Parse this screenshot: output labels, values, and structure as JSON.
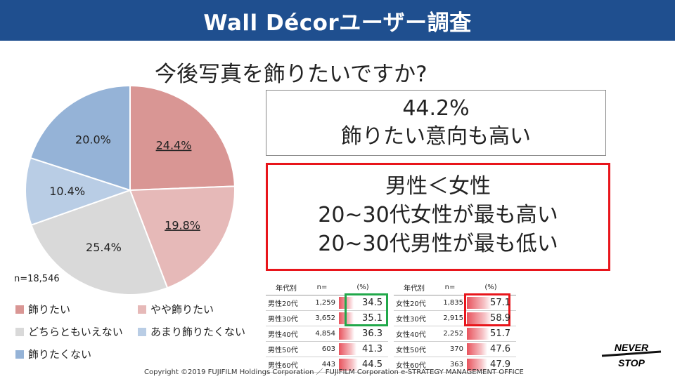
{
  "header": {
    "title": "Wall Décorユーザー調査"
  },
  "question": "今後写真を飾りたいですか?",
  "box1": {
    "lines": [
      "44.2%",
      "飾りたい意向も高い"
    ]
  },
  "box2": {
    "lines": [
      "男性＜女性",
      "20~30代女性が最も高い",
      "20~30代男性が最も低い"
    ]
  },
  "chart_data": {
    "type": "pie",
    "n_label": "n=18,546",
    "slices": [
      {
        "label": "飾りたい",
        "value": 24.4,
        "display": "24.4%",
        "color": "#d99694"
      },
      {
        "label": "やや飾りたい",
        "value": 19.8,
        "display": "19.8%",
        "color": "#e6b9b8"
      },
      {
        "label": "どちらともいえない",
        "value": 25.4,
        "display": "25.4%",
        "color": "#d9d9d9"
      },
      {
        "label": "あまり飾りたくない",
        "value": 10.4,
        "display": "10.4%",
        "color": "#b9cde5"
      },
      {
        "label": "飾りたくない",
        "value": 20.0,
        "display": "20.0%",
        "color": "#95b3d7"
      }
    ]
  },
  "table_male": {
    "headers": [
      "年代別",
      "n=",
      "(%)"
    ],
    "rows": [
      {
        "group": "男性20代",
        "n": "1,259",
        "pct": "34.5",
        "value": 34.5
      },
      {
        "group": "男性30代",
        "n": "3,652",
        "pct": "35.1",
        "value": 35.1
      },
      {
        "group": "男性40代",
        "n": "4,854",
        "pct": "36.3",
        "value": 36.3
      },
      {
        "group": "男性50代",
        "n": "603",
        "pct": "41.3",
        "value": 41.3
      },
      {
        "group": "男性60代",
        "n": "443",
        "pct": "44.5",
        "value": 44.5
      }
    ]
  },
  "table_female": {
    "headers": [
      "年代別",
      "n=",
      "(%)"
    ],
    "rows": [
      {
        "group": "女性20代",
        "n": "1,835",
        "pct": "57.1",
        "value": 57.1
      },
      {
        "group": "女性30代",
        "n": "2,915",
        "pct": "58.9",
        "value": 58.9
      },
      {
        "group": "女性40代",
        "n": "2,252",
        "pct": "51.7",
        "value": 51.7
      },
      {
        "group": "女性50代",
        "n": "370",
        "pct": "47.6",
        "value": 47.6
      },
      {
        "group": "女性60代",
        "n": "363",
        "pct": "47.9",
        "value": 47.9
      }
    ]
  },
  "footer": "Copyright ©2019 FUJIFILM Holdings Corporation ／ FUJIFILM Corporation e-STRATEGY MANAGEMENT OFFICE",
  "logo": {
    "line1": "NEVER",
    "line2": "STOP"
  },
  "colors": {
    "header_bg": "#1f4f8f",
    "highlight_red": "#e8151b",
    "highlight_green": "#21a84a"
  }
}
